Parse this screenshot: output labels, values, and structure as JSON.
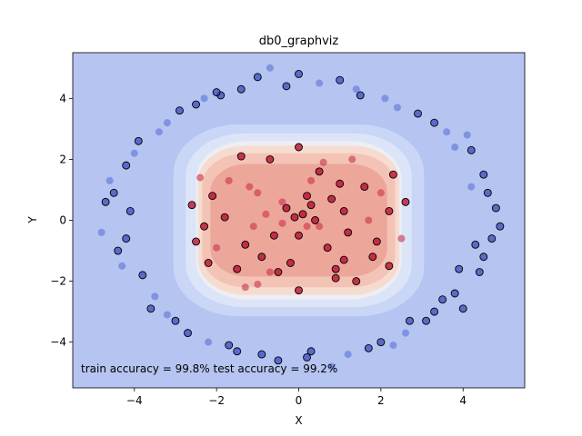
{
  "chart_data": {
    "type": "scatter",
    "title": "db0_graphviz",
    "xlabel": "X",
    "ylabel": "Y",
    "xlim": [
      -5.5,
      5.5
    ],
    "ylim": [
      -5.5,
      5.5
    ],
    "xticks": [
      -4,
      -2,
      0,
      2,
      4
    ],
    "yticks": [
      -4,
      -2,
      0,
      2,
      4
    ],
    "tick_labels_x": [
      "−4",
      "−2",
      "0",
      "2",
      "4"
    ],
    "tick_labels_y": [
      "−4",
      "−2",
      "0",
      "2",
      "4"
    ],
    "grid": false,
    "legend": "none",
    "background_color": "#b5c4f0",
    "annotation": "train accuracy = 99.8%  test accuracy = 99.2%",
    "decision_regions": [
      {
        "level": 1,
        "color": "#c9d6f6"
      },
      {
        "level": 2,
        "color": "#dce5f8"
      },
      {
        "level": 3,
        "color": "#eeeef3"
      },
      {
        "level": 4,
        "color": "#f6dcd0"
      },
      {
        "level": 5,
        "color": "#f3c4b5"
      },
      {
        "level": 6,
        "color": "#eda69a"
      }
    ],
    "series": [
      {
        "class": "outer-ring",
        "color_train": "#3b4cc0",
        "color_test": "#5b73d8",
        "points": [
          [
            4.5,
            -1.2
          ],
          [
            4.2,
            2.3
          ],
          [
            -0.7,
            5.0
          ],
          [
            -4.5,
            0.9
          ],
          [
            2.7,
            -3.3
          ],
          [
            1.4,
            4.3
          ],
          [
            -3.8,
            -1.8
          ],
          [
            4.8,
            0.4
          ],
          [
            -2.3,
            4.0
          ],
          [
            3.3,
            3.2
          ],
          [
            0.2,
            -4.5
          ],
          [
            -3.2,
            -3.1
          ],
          [
            3.8,
            -2.4
          ],
          [
            -4.2,
            1.8
          ],
          [
            1.2,
            -4.4
          ],
          [
            -1.5,
            -4.3
          ],
          [
            4.5,
            1.5
          ],
          [
            -4.8,
            -0.4
          ],
          [
            2.9,
            3.5
          ],
          [
            -2.9,
            3.6
          ],
          [
            0.5,
            4.5
          ],
          [
            -1.4,
            4.3
          ],
          [
            3.3,
            -3.0
          ],
          [
            -3.5,
            -2.5
          ],
          [
            4.9,
            -0.2
          ],
          [
            -4.4,
            -1.0
          ],
          [
            2.1,
            4.0
          ],
          [
            -0.5,
            -4.6
          ],
          [
            2.0,
            -4.0
          ],
          [
            -2.2,
            -4.0
          ],
          [
            3.9,
            -1.6
          ],
          [
            -3.9,
            2.6
          ],
          [
            4.1,
            2.8
          ],
          [
            -1.9,
            4.1
          ],
          [
            1.0,
            4.6
          ],
          [
            -3.2,
            3.2
          ],
          [
            4.3,
            -0.8
          ],
          [
            -4.1,
            0.3
          ],
          [
            2.6,
            -3.7
          ],
          [
            -2.7,
            -3.7
          ],
          [
            0.0,
            4.8
          ],
          [
            3.6,
            2.9
          ],
          [
            -3.6,
            -2.9
          ],
          [
            1.7,
            -4.2
          ],
          [
            -4.6,
            1.3
          ],
          [
            4.0,
            -2.9
          ],
          [
            -0.9,
            -4.4
          ],
          [
            2.4,
            3.7
          ],
          [
            -2.5,
            3.8
          ],
          [
            4.6,
            0.9
          ],
          [
            -4.3,
            -1.5
          ],
          [
            3.1,
            -3.3
          ],
          [
            -1.0,
            4.7
          ],
          [
            0.8,
            -4.8
          ],
          [
            -3.0,
            -3.3
          ],
          [
            4.4,
            -1.7
          ],
          [
            -4.0,
            2.2
          ],
          [
            1.5,
            4.1
          ],
          [
            -1.7,
            -4.1
          ],
          [
            3.8,
            2.4
          ],
          [
            4.7,
            -0.6
          ],
          [
            -4.7,
            0.6
          ],
          [
            2.3,
            -4.1
          ],
          [
            -2.0,
            4.2
          ],
          [
            3.5,
            -2.6
          ],
          [
            -3.4,
            2.9
          ],
          [
            0.3,
            -4.3
          ],
          [
            -0.3,
            4.4
          ],
          [
            4.2,
            1.1
          ],
          [
            -4.2,
            -0.6
          ]
        ]
      },
      {
        "class": "inner-core",
        "color_train": "#b40426",
        "color_test": "#c8324a",
        "points": [
          [
            0.1,
            0.2
          ],
          [
            -0.3,
            0.4
          ],
          [
            0.5,
            -0.2
          ],
          [
            -0.6,
            -0.5
          ],
          [
            0.8,
            0.7
          ],
          [
            -1.0,
            0.9
          ],
          [
            1.2,
            -0.4
          ],
          [
            -1.3,
            -0.8
          ],
          [
            0.3,
            1.3
          ],
          [
            -0.2,
            -1.4
          ],
          [
            1.6,
            1.1
          ],
          [
            -1.7,
            1.3
          ],
          [
            1.8,
            -1.2
          ],
          [
            -1.5,
            -1.6
          ],
          [
            0.6,
            1.9
          ],
          [
            -0.7,
            2.0
          ],
          [
            0.9,
            -1.9
          ],
          [
            -1.0,
            -2.1
          ],
          [
            2.2,
            0.3
          ],
          [
            -2.3,
            -0.2
          ],
          [
            2.0,
            0.9
          ],
          [
            -2.1,
            0.8
          ],
          [
            1.9,
            -0.7
          ],
          [
            -2.0,
            -0.9
          ],
          [
            0.0,
            2.4
          ],
          [
            0.0,
            -2.3
          ],
          [
            1.3,
            2.0
          ],
          [
            -1.4,
            2.1
          ],
          [
            1.4,
            -2.0
          ],
          [
            -1.3,
            -2.2
          ],
          [
            2.6,
            0.6
          ],
          [
            -2.6,
            0.5
          ],
          [
            2.5,
            -0.6
          ],
          [
            -2.5,
            -0.7
          ],
          [
            0.4,
            0.0
          ],
          [
            -0.4,
            -0.1
          ],
          [
            0.0,
            -0.5
          ],
          [
            0.2,
            0.8
          ],
          [
            -0.8,
            0.2
          ],
          [
            0.7,
            -0.9
          ],
          [
            1.1,
            0.3
          ],
          [
            -1.1,
            -0.2
          ],
          [
            0.5,
            1.6
          ],
          [
            -0.5,
            -1.7
          ],
          [
            1.7,
            0.0
          ],
          [
            -1.8,
            0.1
          ],
          [
            1.0,
            1.2
          ],
          [
            -1.2,
            1.1
          ],
          [
            1.1,
            -1.3
          ],
          [
            -0.9,
            -1.2
          ],
          [
            -0.7,
            -1.7
          ],
          [
            0.9,
            -1.6
          ],
          [
            2.3,
            1.5
          ],
          [
            -2.4,
            1.4
          ],
          [
            2.2,
            -1.5
          ],
          [
            -2.2,
            -1.4
          ],
          [
            0.2,
            -0.2
          ],
          [
            -0.1,
            0.1
          ],
          [
            0.3,
            0.5
          ],
          [
            -0.4,
            0.6
          ]
        ]
      }
    ]
  }
}
